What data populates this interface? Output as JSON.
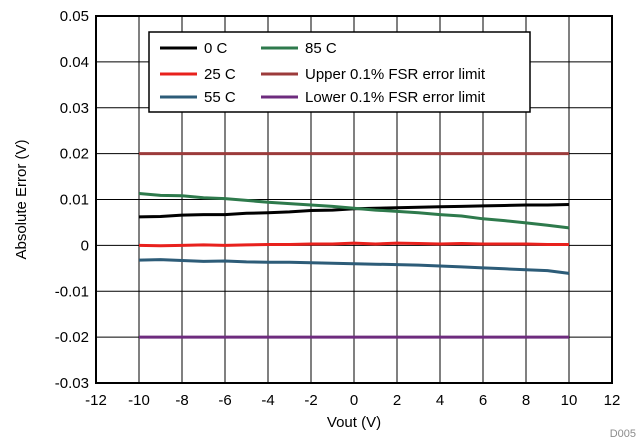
{
  "figure_id": "D005",
  "chart_data": {
    "type": "line",
    "title": "",
    "xlabel": "Vout (V)",
    "ylabel": "Absolute Error (V)",
    "xlim": [
      -12,
      12
    ],
    "ylim": [
      -0.03,
      0.05
    ],
    "xticks": [
      -12,
      -10,
      -8,
      -6,
      -4,
      -2,
      0,
      2,
      4,
      6,
      8,
      10,
      12
    ],
    "yticks": [
      -0.03,
      -0.02,
      -0.01,
      0,
      0.01,
      0.02,
      0.03,
      0.04,
      0.05
    ],
    "xtick_labels": [
      "-12",
      "-10",
      "-8",
      "-6",
      "-4",
      "-2",
      "0",
      "2",
      "4",
      "6",
      "8",
      "10",
      "12"
    ],
    "ytick_labels": [
      "-0.03",
      "-0.02",
      "-0.01",
      "0",
      "0.01",
      "0.02",
      "0.03",
      "0.04",
      "0.05"
    ],
    "grid": true,
    "legend_position": "top-left",
    "x": [
      -10,
      -9,
      -8,
      -7,
      -6,
      -5,
      -4,
      -3,
      -2,
      -1,
      0,
      1,
      2,
      3,
      4,
      5,
      6,
      7,
      8,
      9,
      10
    ],
    "series": [
      {
        "name": "0 C",
        "color": "#000000",
        "values": [
          0.0062,
          0.0063,
          0.0066,
          0.0067,
          0.0067,
          0.007,
          0.0071,
          0.0073,
          0.0076,
          0.0077,
          0.008,
          0.0081,
          0.0082,
          0.0083,
          0.0084,
          0.0085,
          0.0086,
          0.0087,
          0.0088,
          0.0088,
          0.0089
        ]
      },
      {
        "name": "25 C",
        "color": "#e8211d",
        "values": [
          0.0,
          -0.0001,
          0.0,
          0.0001,
          0.0,
          0.0001,
          0.0002,
          0.0002,
          0.0003,
          0.0003,
          0.0005,
          0.0003,
          0.0005,
          0.0004,
          0.0003,
          0.0004,
          0.0003,
          0.0003,
          0.0003,
          0.0002,
          0.0002
        ]
      },
      {
        "name": "55 C",
        "color": "#2d5c78",
        "values": [
          -0.0032,
          -0.0031,
          -0.0033,
          -0.0035,
          -0.0034,
          -0.0036,
          -0.0037,
          -0.0037,
          -0.0038,
          -0.0039,
          -0.004,
          -0.0041,
          -0.0042,
          -0.0043,
          -0.0045,
          -0.0047,
          -0.0049,
          -0.0051,
          -0.0053,
          -0.0055,
          -0.0061
        ]
      },
      {
        "name": "85 C",
        "color": "#2e7a4c",
        "values": [
          0.0113,
          0.0109,
          0.0108,
          0.0104,
          0.0102,
          0.0098,
          0.0094,
          0.0091,
          0.0088,
          0.0085,
          0.0081,
          0.0077,
          0.0074,
          0.0071,
          0.0067,
          0.0064,
          0.0058,
          0.0054,
          0.0049,
          0.0044,
          0.0038
        ]
      },
      {
        "name": "Upper 0.1% FSR error limit",
        "color": "#9c3b3b",
        "values": [
          0.02,
          0.02,
          0.02,
          0.02,
          0.02,
          0.02,
          0.02,
          0.02,
          0.02,
          0.02,
          0.02,
          0.02,
          0.02,
          0.02,
          0.02,
          0.02,
          0.02,
          0.02,
          0.02,
          0.02,
          0.02
        ]
      },
      {
        "name": "Lower 0.1% FSR error limit",
        "color": "#6e2c7e",
        "values": [
          -0.02,
          -0.02,
          -0.02,
          -0.02,
          -0.02,
          -0.02,
          -0.02,
          -0.02,
          -0.02,
          -0.02,
          -0.02,
          -0.02,
          -0.02,
          -0.02,
          -0.02,
          -0.02,
          -0.02,
          -0.02,
          -0.02,
          -0.02,
          -0.02
        ]
      }
    ]
  }
}
